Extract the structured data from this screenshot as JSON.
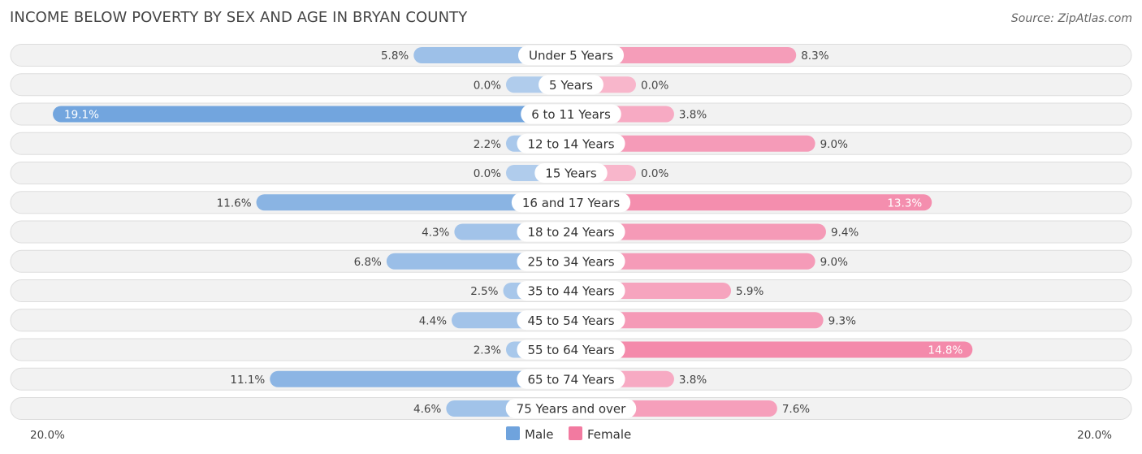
{
  "chart_data": {
    "type": "bar",
    "orientation": "horizontal-diverging",
    "title": "INCOME BELOW POVERTY BY SEX AND AGE IN BRYAN COUNTY",
    "source": "Source: ZipAtlas.com",
    "categories": [
      "Under 5 Years",
      "5 Years",
      "6 to 11 Years",
      "12 to 14 Years",
      "15 Years",
      "16 and 17 Years",
      "18 to 24 Years",
      "25 to 34 Years",
      "35 to 44 Years",
      "45 to 54 Years",
      "55 to 64 Years",
      "65 to 74 Years",
      "75 Years and over"
    ],
    "series": [
      {
        "name": "Male",
        "color": "#6fa3dd",
        "values": [
          5.8,
          0.0,
          19.1,
          2.2,
          0.0,
          11.6,
          4.3,
          6.8,
          2.5,
          4.4,
          2.3,
          11.1,
          4.6
        ],
        "labels": [
          "5.8%",
          "0.0%",
          "19.1%",
          "2.2%",
          "0.0%",
          "11.6%",
          "4.3%",
          "6.8%",
          "2.5%",
          "4.4%",
          "2.3%",
          "11.1%",
          "4.6%"
        ]
      },
      {
        "name": "Female",
        "color": "#f27aa0",
        "values": [
          8.3,
          0.0,
          3.8,
          9.0,
          0.0,
          13.3,
          9.4,
          9.0,
          5.9,
          9.3,
          14.8,
          3.8,
          7.6
        ],
        "labels": [
          "8.3%",
          "0.0%",
          "3.8%",
          "9.0%",
          "0.0%",
          "13.3%",
          "9.4%",
          "9.0%",
          "5.9%",
          "9.3%",
          "14.8%",
          "3.8%",
          "7.6%"
        ]
      }
    ],
    "axis": {
      "min_label": "20.0%",
      "max_label": "20.0%",
      "max": 20.0
    },
    "legend_position": "bottom-center"
  }
}
